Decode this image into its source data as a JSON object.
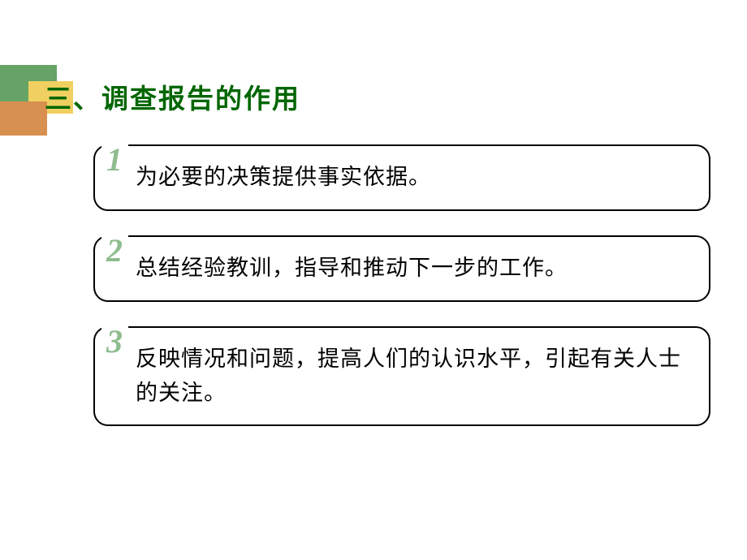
{
  "title": {
    "text": "三、调查报告的作用",
    "color": "#006600",
    "fontsize": 33
  },
  "decorative": {
    "block_green_color": "#66a366",
    "block_yellow_color": "#f0d060",
    "block_orange_color": "#d89050"
  },
  "items": [
    {
      "number": "1",
      "number_color": "#8fbc8f",
      "text": "为必要的决策提供事实依据。"
    },
    {
      "number": "2",
      "number_color": "#8fbc8f",
      "text": "总结经验教训，指导和推动下一步的工作。"
    },
    {
      "number": "3",
      "number_color": "#8fbc8f",
      "text": "反映情况和问题，提高人们的认识水平，引起有关人士的关注。"
    }
  ],
  "box_border_color": "#000000",
  "box_border_radius": 18,
  "text_color": "#000000",
  "background_color": "#ffffff"
}
